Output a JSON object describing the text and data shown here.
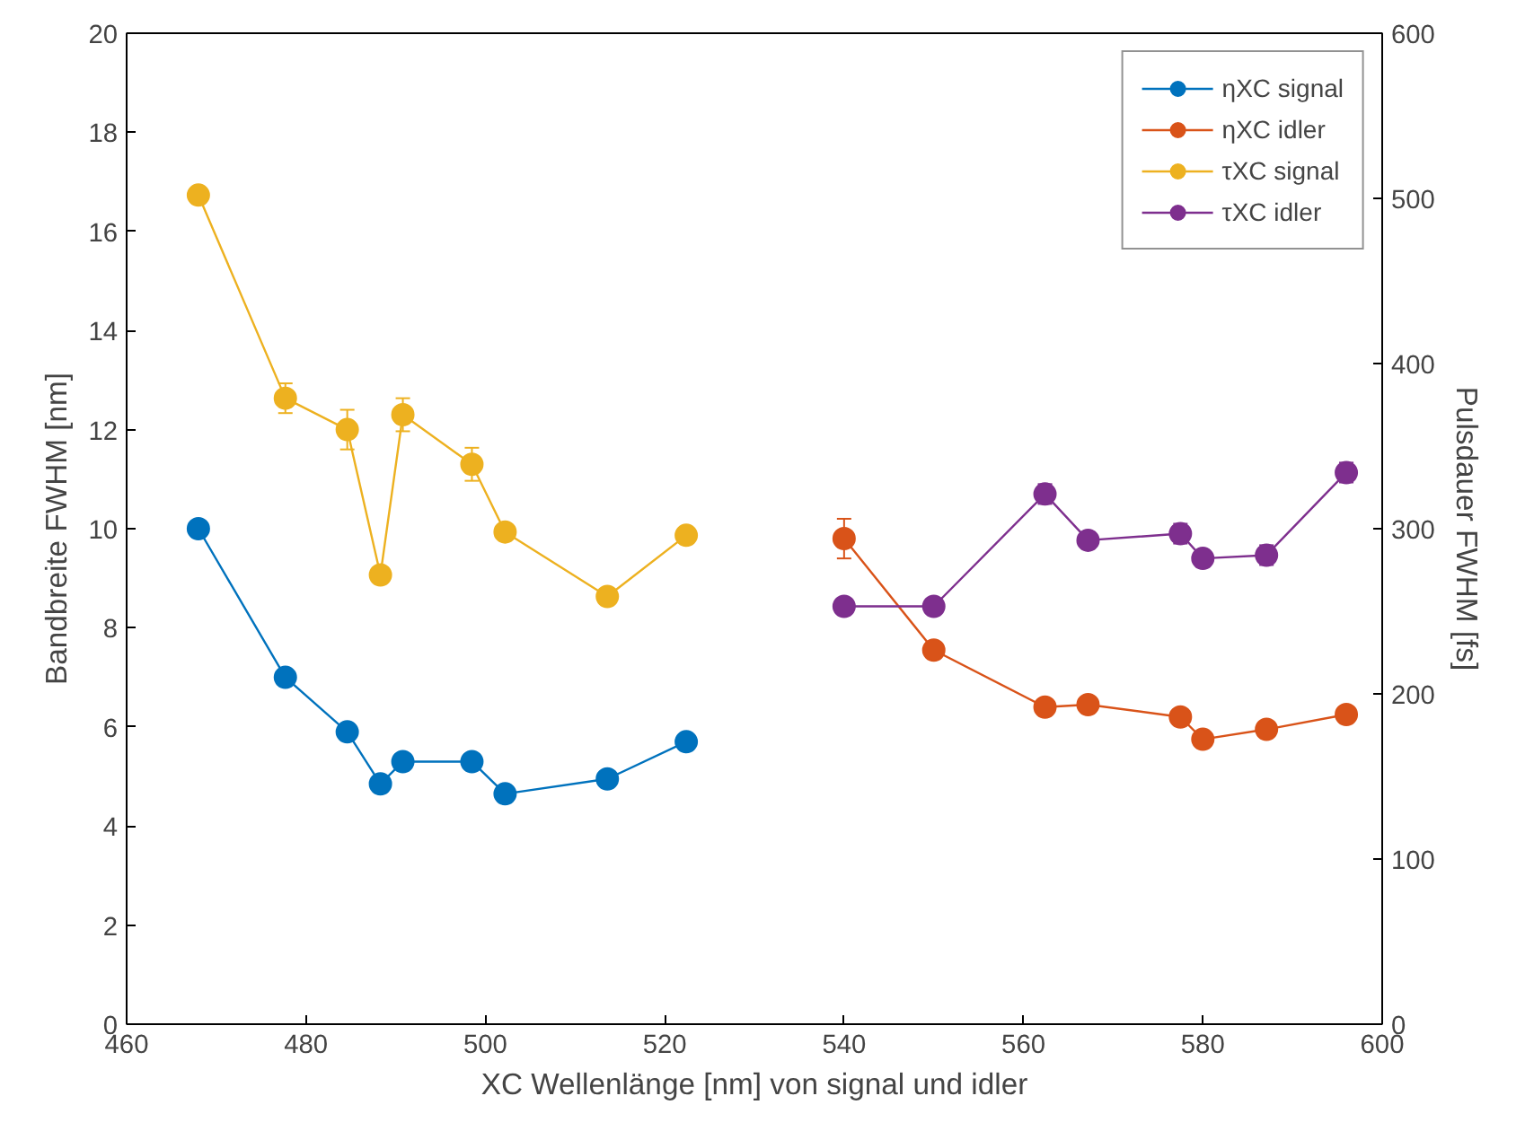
{
  "chart_data": {
    "type": "line",
    "xlabel": "XC Wellenlänge [nm] von signal und idler",
    "ylabel": "Bandbreite FWHM [nm]",
    "y2label": "Pulsdauer FWHM [fs]",
    "xlim": [
      460,
      600
    ],
    "xticks": [
      460,
      480,
      500,
      520,
      540,
      560,
      580,
      600
    ],
    "ylim": [
      0,
      20
    ],
    "yticks": [
      0,
      2,
      4,
      6,
      8,
      10,
      12,
      14,
      16,
      18,
      20
    ],
    "y2lim": [
      0,
      600
    ],
    "y2ticks": [
      0,
      100,
      200,
      300,
      400,
      500,
      600
    ],
    "grid": false,
    "legend": "top right",
    "marker": "circle",
    "line_style": "solid",
    "series": [
      {
        "name": "ηXC signal",
        "color": "#0072bd",
        "x": [
          468,
          477.7,
          484.6,
          488.3,
          490.8,
          498.5,
          502.2,
          513.6,
          522.4
        ],
        "values": [
          10.0,
          7.0,
          5.9,
          4.85,
          5.3,
          5.3,
          4.65,
          4.95,
          5.7
        ],
        "errors": [
          0.1,
          0.1,
          0.1,
          0.1,
          0.1,
          0.1,
          0.1,
          0.1,
          0.1
        ]
      },
      {
        "name": "ηXC idler",
        "color": "#d95319",
        "x": [
          540,
          550,
          562.4,
          567.2,
          577.5,
          580,
          587.1,
          596
        ],
        "values": [
          9.8,
          7.55,
          6.4,
          6.45,
          6.2,
          5.75,
          5.95,
          6.25
        ],
        "errors": [
          0.4,
          0.1,
          0.1,
          0.1,
          0.15,
          0.1,
          0.1,
          0.1
        ]
      },
      {
        "name": "τXC signal",
        "color": "#edb120",
        "axis": "y2",
        "x": [
          468,
          477.7,
          484.6,
          488.3,
          490.8,
          498.5,
          502.2,
          513.6,
          522.4
        ],
        "values": [
          502,
          379,
          360,
          272,
          369,
          339,
          298,
          259,
          296
        ],
        "errors": [
          4,
          9,
          12,
          4,
          10,
          10,
          3,
          3,
          3
        ]
      },
      {
        "name": "τXC idler",
        "color": "#7e2f8e",
        "axis": "y2",
        "x": [
          540,
          550,
          562.4,
          567.2,
          577.5,
          580,
          587.1,
          596
        ],
        "values": [
          253,
          253,
          321,
          293,
          297,
          282,
          284,
          334
        ],
        "errors": [
          3,
          3,
          6,
          5,
          6,
          5,
          6,
          6
        ]
      }
    ]
  }
}
